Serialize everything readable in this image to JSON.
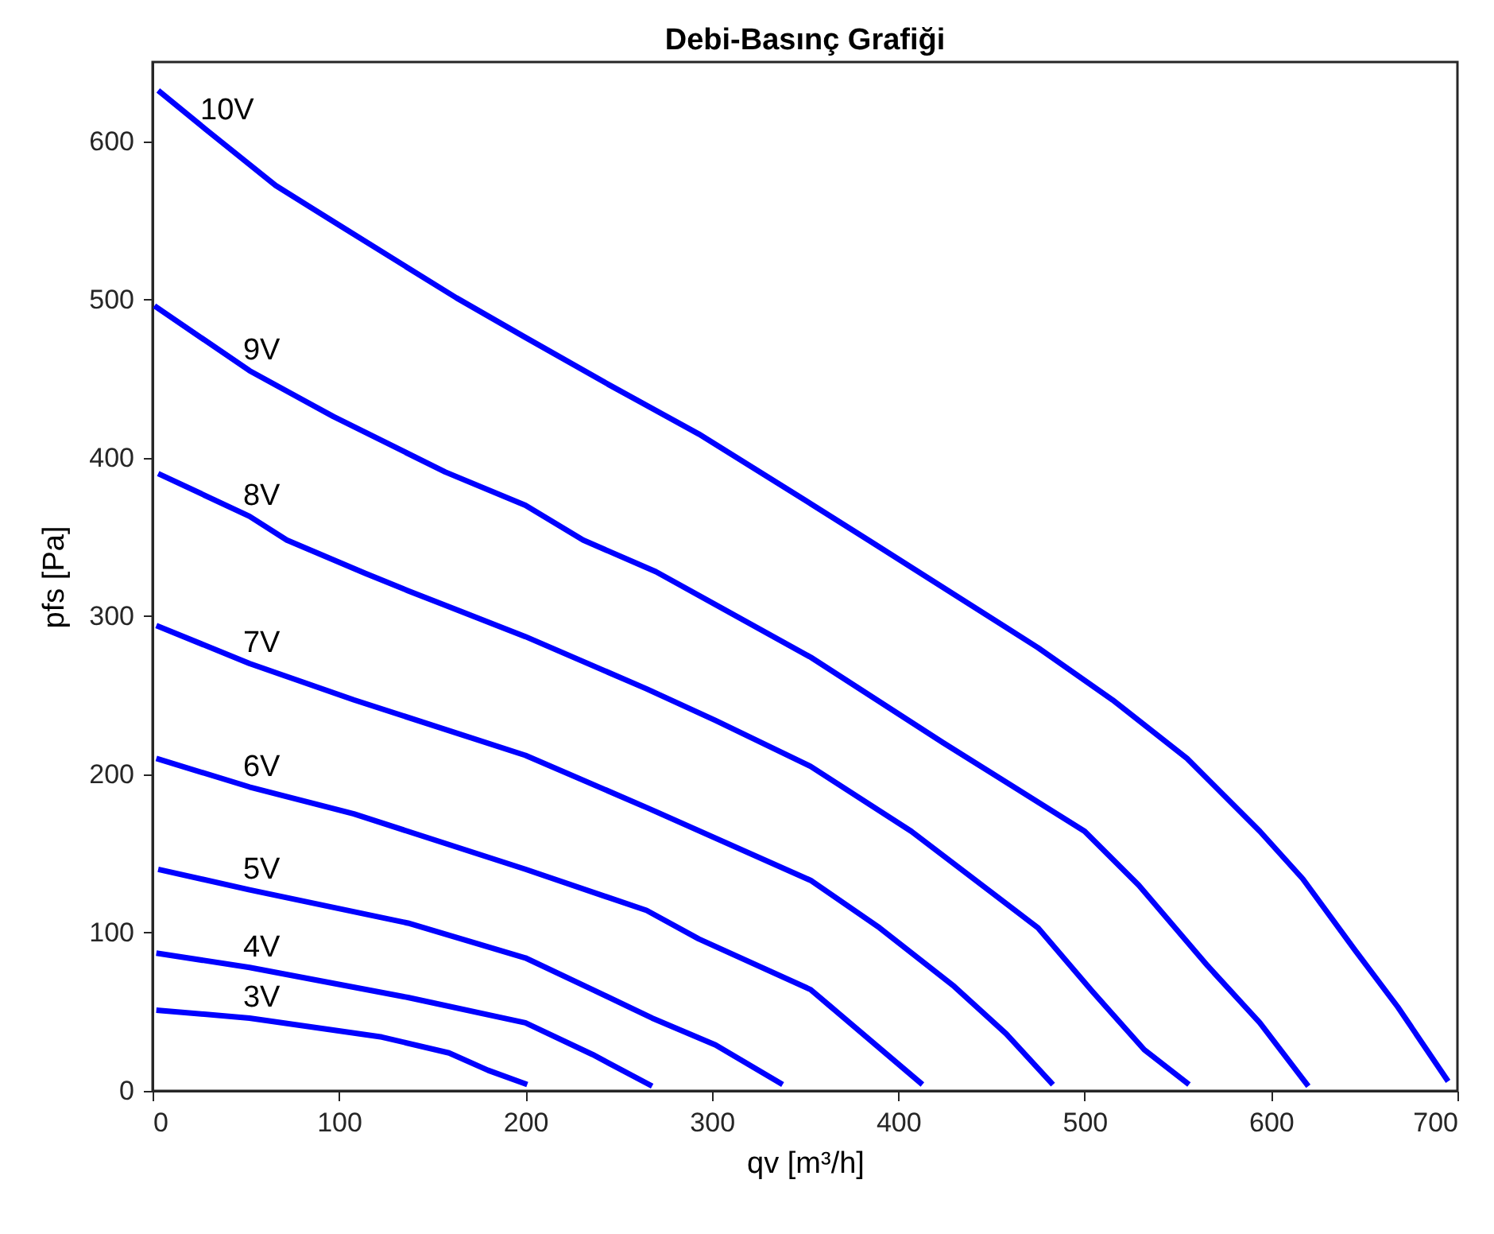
{
  "chart_data": {
    "type": "line",
    "title": "Debi-Basınç Grafiği",
    "xlabel": "qv [m³/h]",
    "ylabel": "pfs [Pa]",
    "xlim": [
      0,
      700
    ],
    "ylim": [
      0,
      650
    ],
    "xticks": [
      0,
      100,
      200,
      300,
      400,
      500,
      600,
      700
    ],
    "yticks": [
      0,
      100,
      200,
      300,
      400,
      500,
      600
    ],
    "grid": false,
    "legend": false,
    "marker": "none",
    "line_style": "solid",
    "series": [
      {
        "name": "10V",
        "color": "#0000ff",
        "x": [
          3,
          29,
          66,
          100,
          163,
          200,
          245,
          293,
          353,
          384,
          475,
          515,
          555,
          594,
          617,
          645,
          668,
          695
        ],
        "values": [
          632,
          607,
          572,
          547,
          501,
          476,
          446,
          415,
          371,
          348,
          280,
          247,
          210,
          164,
          134,
          89,
          53,
          6
        ]
      },
      {
        "name": "9V",
        "color": "#0000ff",
        "x": [
          1,
          52,
          97,
          157,
          200,
          231,
          270,
          353,
          424,
          500,
          529,
          566,
          594,
          620
        ],
        "values": [
          496,
          455,
          426,
          391,
          370,
          348,
          328,
          274,
          220,
          164,
          130,
          79,
          43,
          3
        ]
      },
      {
        "name": "8V",
        "color": "#0000ff",
        "x": [
          3,
          52,
          72,
          114,
          137,
          200,
          265,
          302,
          353,
          407,
          475,
          504,
          532,
          556
        ],
        "values": [
          390,
          363,
          348,
          327,
          316,
          287,
          254,
          234,
          205,
          164,
          103,
          63,
          26,
          4
        ]
      },
      {
        "name": "7V",
        "color": "#0000ff",
        "x": [
          2,
          52,
          108,
          200,
          265,
          353,
          390,
          430,
          458,
          483
        ],
        "values": [
          294,
          270,
          247,
          212,
          179,
          133,
          103,
          66,
          36,
          4
        ]
      },
      {
        "name": "6V",
        "color": "#0000ff",
        "x": [
          2,
          52,
          108,
          200,
          265,
          293,
          353,
          364,
          413
        ],
        "values": [
          210,
          192,
          175,
          140,
          114,
          96,
          64,
          53,
          4
        ]
      },
      {
        "name": "5V",
        "color": "#0000ff",
        "x": [
          3,
          52,
          137,
          200,
          236,
          268,
          302,
          338
        ],
        "values": [
          140,
          127,
          106,
          84,
          64,
          46,
          29,
          4
        ]
      },
      {
        "name": "4V",
        "color": "#0000ff",
        "x": [
          2,
          52,
          137,
          200,
          236,
          268
        ],
        "values": [
          87,
          78,
          59,
          43,
          23,
          3
        ]
      },
      {
        "name": "3V",
        "color": "#0000ff",
        "x": [
          2,
          52,
          123,
          159,
          180,
          201
        ],
        "values": [
          51,
          46,
          34,
          24,
          13,
          4
        ]
      }
    ]
  }
}
